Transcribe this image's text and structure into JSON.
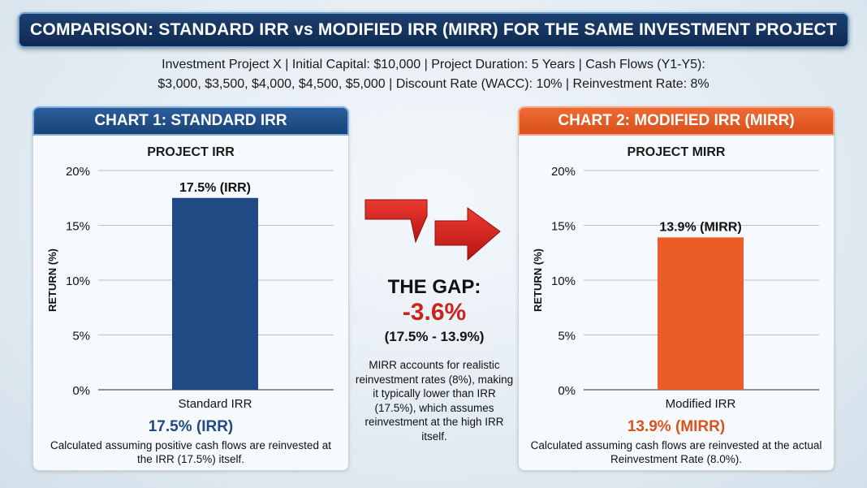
{
  "header": {
    "title": "COMPARISON: STANDARD IRR vs MODIFIED IRR (MIRR) FOR THE SAME INVESTMENT PROJECT",
    "subtitle_line1": "Investment Project X  |  Initial Capital: $10,000  |  Project Duration: 5 Years  |  Cash Flows (Y1-Y5):",
    "subtitle_line2": "$3,000, $3,500, $4,000, $4,500, $5,000    |   Discount Rate (WACC): 10%  |  Reinvestment Rate: 8%"
  },
  "left_panel": {
    "header": "CHART 1: STANDARD IRR",
    "bottom_value": "17.5% (IRR)",
    "description": "Calculated assuming positive cash flows are reinvested at the IRR (17.5%) itself."
  },
  "right_panel": {
    "header": "CHART 2: MODIFIED IRR (MIRR)",
    "bottom_value": "13.9% (MIRR)",
    "description": "Calculated assuming cash flows are reinvested at the actual Reinvestment Rate (8.0%)."
  },
  "gap": {
    "title": "THE GAP:",
    "value": "-3.6%",
    "detail": "(17.5% - 13.9%)",
    "description": "MIRR accounts for realistic reinvestment rates (8%), making it typically lower than IRR (17.5%), which assumes reinvestment at the high IRR itself."
  },
  "colors": {
    "irr_bar": "#1f4a84",
    "mirr_bar": "#ea5d26",
    "arrow": "#d41f1f"
  },
  "chart_data": [
    {
      "type": "bar",
      "title": "PROJECT IRR",
      "ylabel": "RETURN (%)",
      "ylim": [
        0,
        20
      ],
      "yticks": [
        "0%",
        "5%",
        "10%",
        "15%",
        "20%"
      ],
      "categories": [
        "Standard IRR"
      ],
      "values": [
        17.5
      ],
      "data_labels": [
        "17.5% (IRR)"
      ],
      "color": "#1f4a84",
      "grid": true
    },
    {
      "type": "bar",
      "title": "PROJECT MIRR",
      "ylabel": "RETURN (%)",
      "ylim": [
        0,
        20
      ],
      "yticks": [
        "0%",
        "5%",
        "10%",
        "15%",
        "20%"
      ],
      "categories": [
        "Modified IRR"
      ],
      "values": [
        13.9
      ],
      "data_labels": [
        "13.9% (MIRR)"
      ],
      "color": "#ea5d26",
      "grid": true
    }
  ]
}
